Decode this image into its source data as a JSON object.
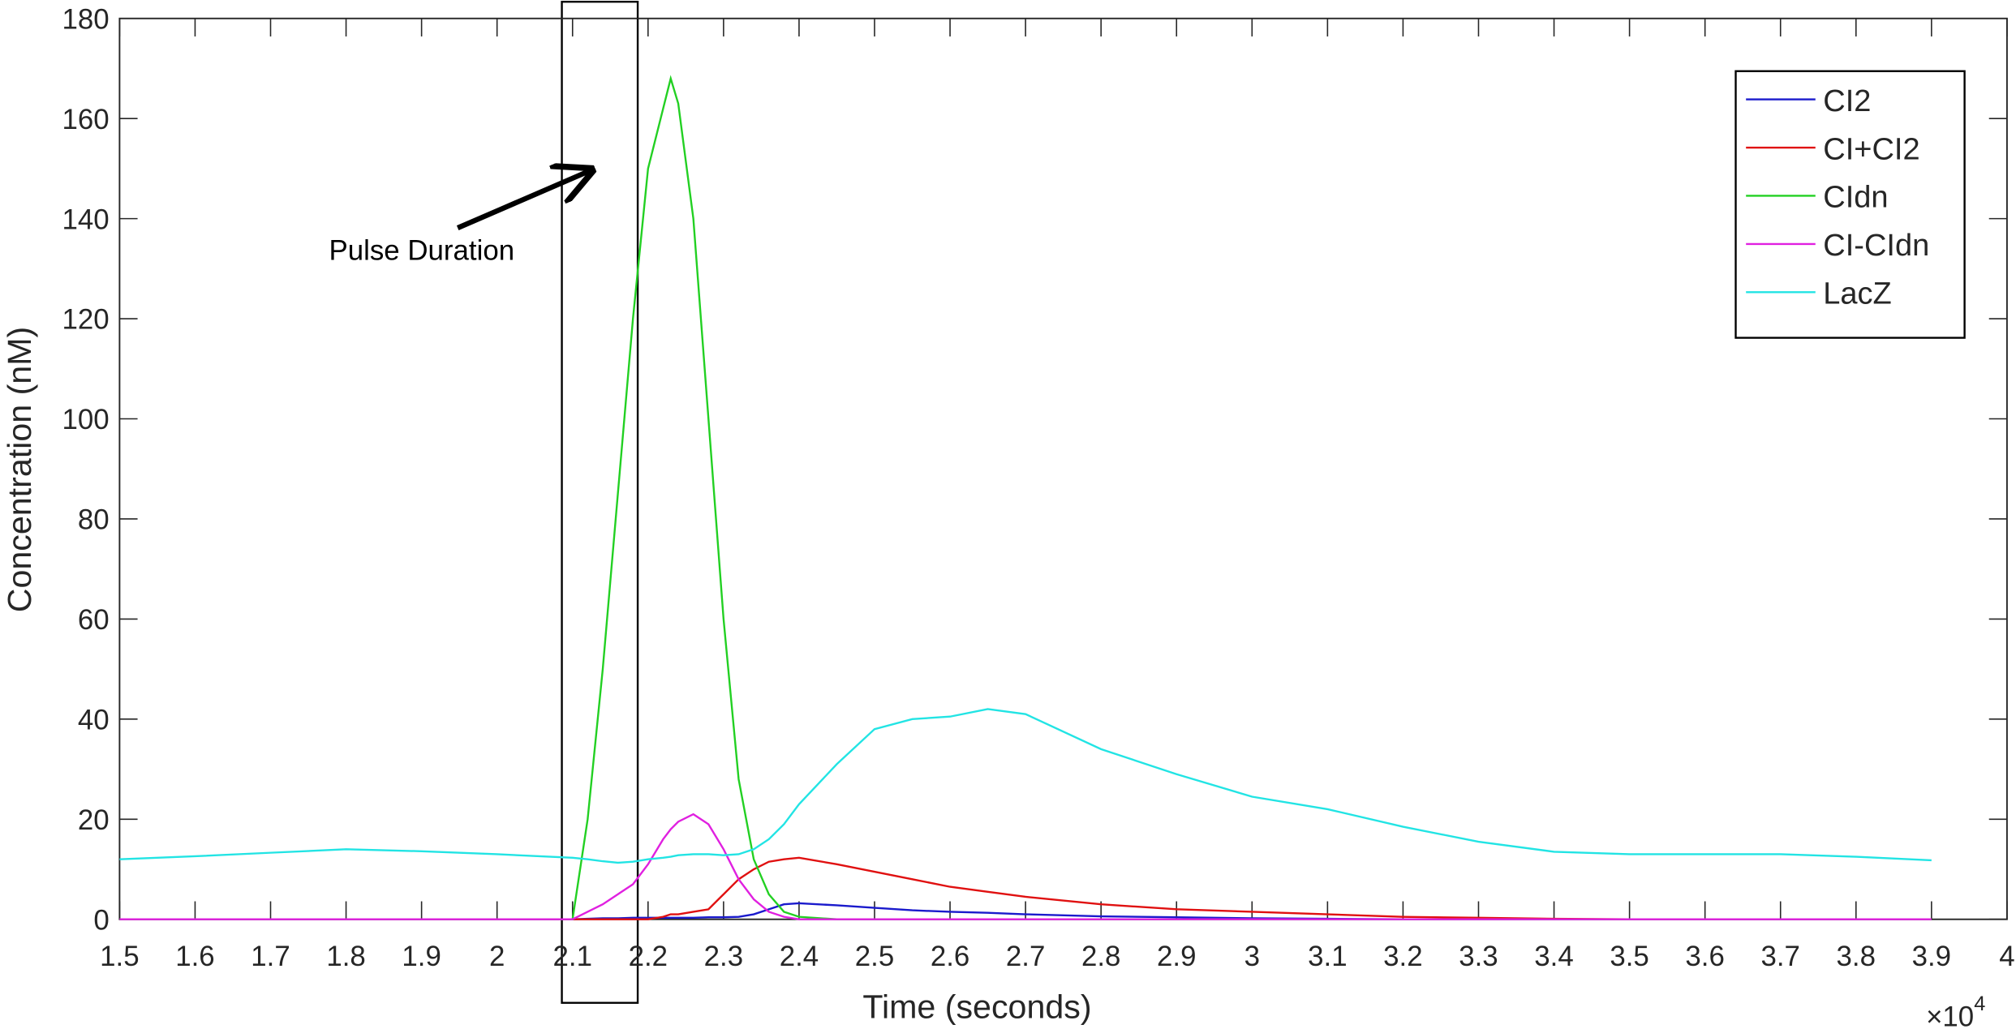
{
  "chart_data": {
    "type": "line",
    "x_label": "Time (seconds)",
    "y_label": "Concentration (nM)",
    "x_multiplier": "×10",
    "x_multiplier_exponent": "4",
    "annotation": "Pulse Duration",
    "x": [
      1.5,
      1.6,
      1.7,
      1.8,
      1.9,
      2.0,
      2.1,
      2.12,
      2.14,
      2.16,
      2.18,
      2.2,
      2.22,
      2.23,
      2.24,
      2.26,
      2.28,
      2.3,
      2.32,
      2.34,
      2.36,
      2.38,
      2.4,
      2.45,
      2.5,
      2.55,
      2.6,
      2.65,
      2.7,
      2.8,
      2.9,
      3.0,
      3.1,
      3.2,
      3.3,
      3.4,
      3.5,
      3.6,
      3.7,
      3.8,
      3.9
    ],
    "series": [
      {
        "name": "CI2",
        "color": "#1a1acc",
        "values": [
          0,
          0,
          0,
          0,
          0,
          0,
          0,
          0.1,
          0.2,
          0.2,
          0.3,
          0.3,
          0.3,
          0.3,
          0.3,
          0.3,
          0.4,
          0.4,
          0.5,
          1,
          2,
          3,
          3.2,
          2.8,
          2.3,
          1.8,
          1.5,
          1.3,
          1,
          0.6,
          0.4,
          0.2,
          0.1,
          0,
          0,
          0,
          0,
          0,
          0,
          0,
          0
        ]
      },
      {
        "name": "CI+CI2",
        "color": "#e01010",
        "values": [
          0,
          0,
          0,
          0,
          0,
          0,
          0,
          0,
          0,
          0,
          0,
          0,
          0.5,
          1,
          1,
          1.5,
          2,
          5,
          8,
          10,
          11.5,
          12,
          12.3,
          11,
          9.5,
          8,
          6.5,
          5.5,
          4.5,
          3,
          2,
          1.5,
          1,
          0.5,
          0.3,
          0.1,
          0,
          0,
          0,
          0,
          0
        ]
      },
      {
        "name": "CIdn",
        "color": "#22d022",
        "values": [
          0,
          0,
          0,
          0,
          0,
          0,
          0,
          20,
          50,
          85,
          120,
          150,
          162,
          168,
          163,
          140,
          100,
          60,
          28,
          12,
          5,
          1.5,
          0.5,
          0,
          0,
          0,
          0,
          0,
          0,
          0,
          0,
          0,
          0,
          0,
          0,
          0,
          0,
          0,
          0,
          0,
          0
        ]
      },
      {
        "name": "CI-CIdn",
        "color": "#e020e0",
        "values": [
          0,
          0,
          0,
          0,
          0,
          0,
          0,
          1.5,
          3,
          5,
          7,
          11,
          16,
          18,
          19.5,
          21,
          19,
          14,
          8,
          4,
          1.5,
          0.5,
          0,
          0,
          0,
          0,
          0,
          0,
          0,
          0,
          0,
          0,
          0,
          0,
          0,
          0,
          0,
          0,
          0,
          0,
          0
        ]
      },
      {
        "name": "LacZ",
        "color": "#22e4e4",
        "values": [
          12,
          12.6,
          13.3,
          14,
          13.6,
          13,
          12.3,
          12,
          11.6,
          11.3,
          11.5,
          12,
          12.3,
          12.5,
          12.8,
          13,
          13,
          12.8,
          13,
          14,
          16,
          19,
          23,
          31,
          38,
          40,
          40.5,
          42,
          41,
          34,
          29,
          24.5,
          22,
          18.5,
          15.5,
          13.5,
          13,
          13,
          13,
          12.5,
          11.8
        ]
      }
    ],
    "xlim": [
      1.5,
      4
    ],
    "xticks": [
      1.5,
      1.6,
      1.7,
      1.8,
      1.9,
      2,
      2.1,
      2.2,
      2.3,
      2.4,
      2.5,
      2.6,
      2.7,
      2.8,
      2.9,
      3,
      3.1,
      3.2,
      3.3,
      3.4,
      3.5,
      3.6,
      3.7,
      3.8,
      3.9,
      4
    ],
    "ylim": [
      0,
      180
    ],
    "yticks": [
      0,
      20,
      40,
      60,
      80,
      100,
      120,
      140,
      160,
      180
    ],
    "grid": false,
    "legend": "top-right"
  }
}
